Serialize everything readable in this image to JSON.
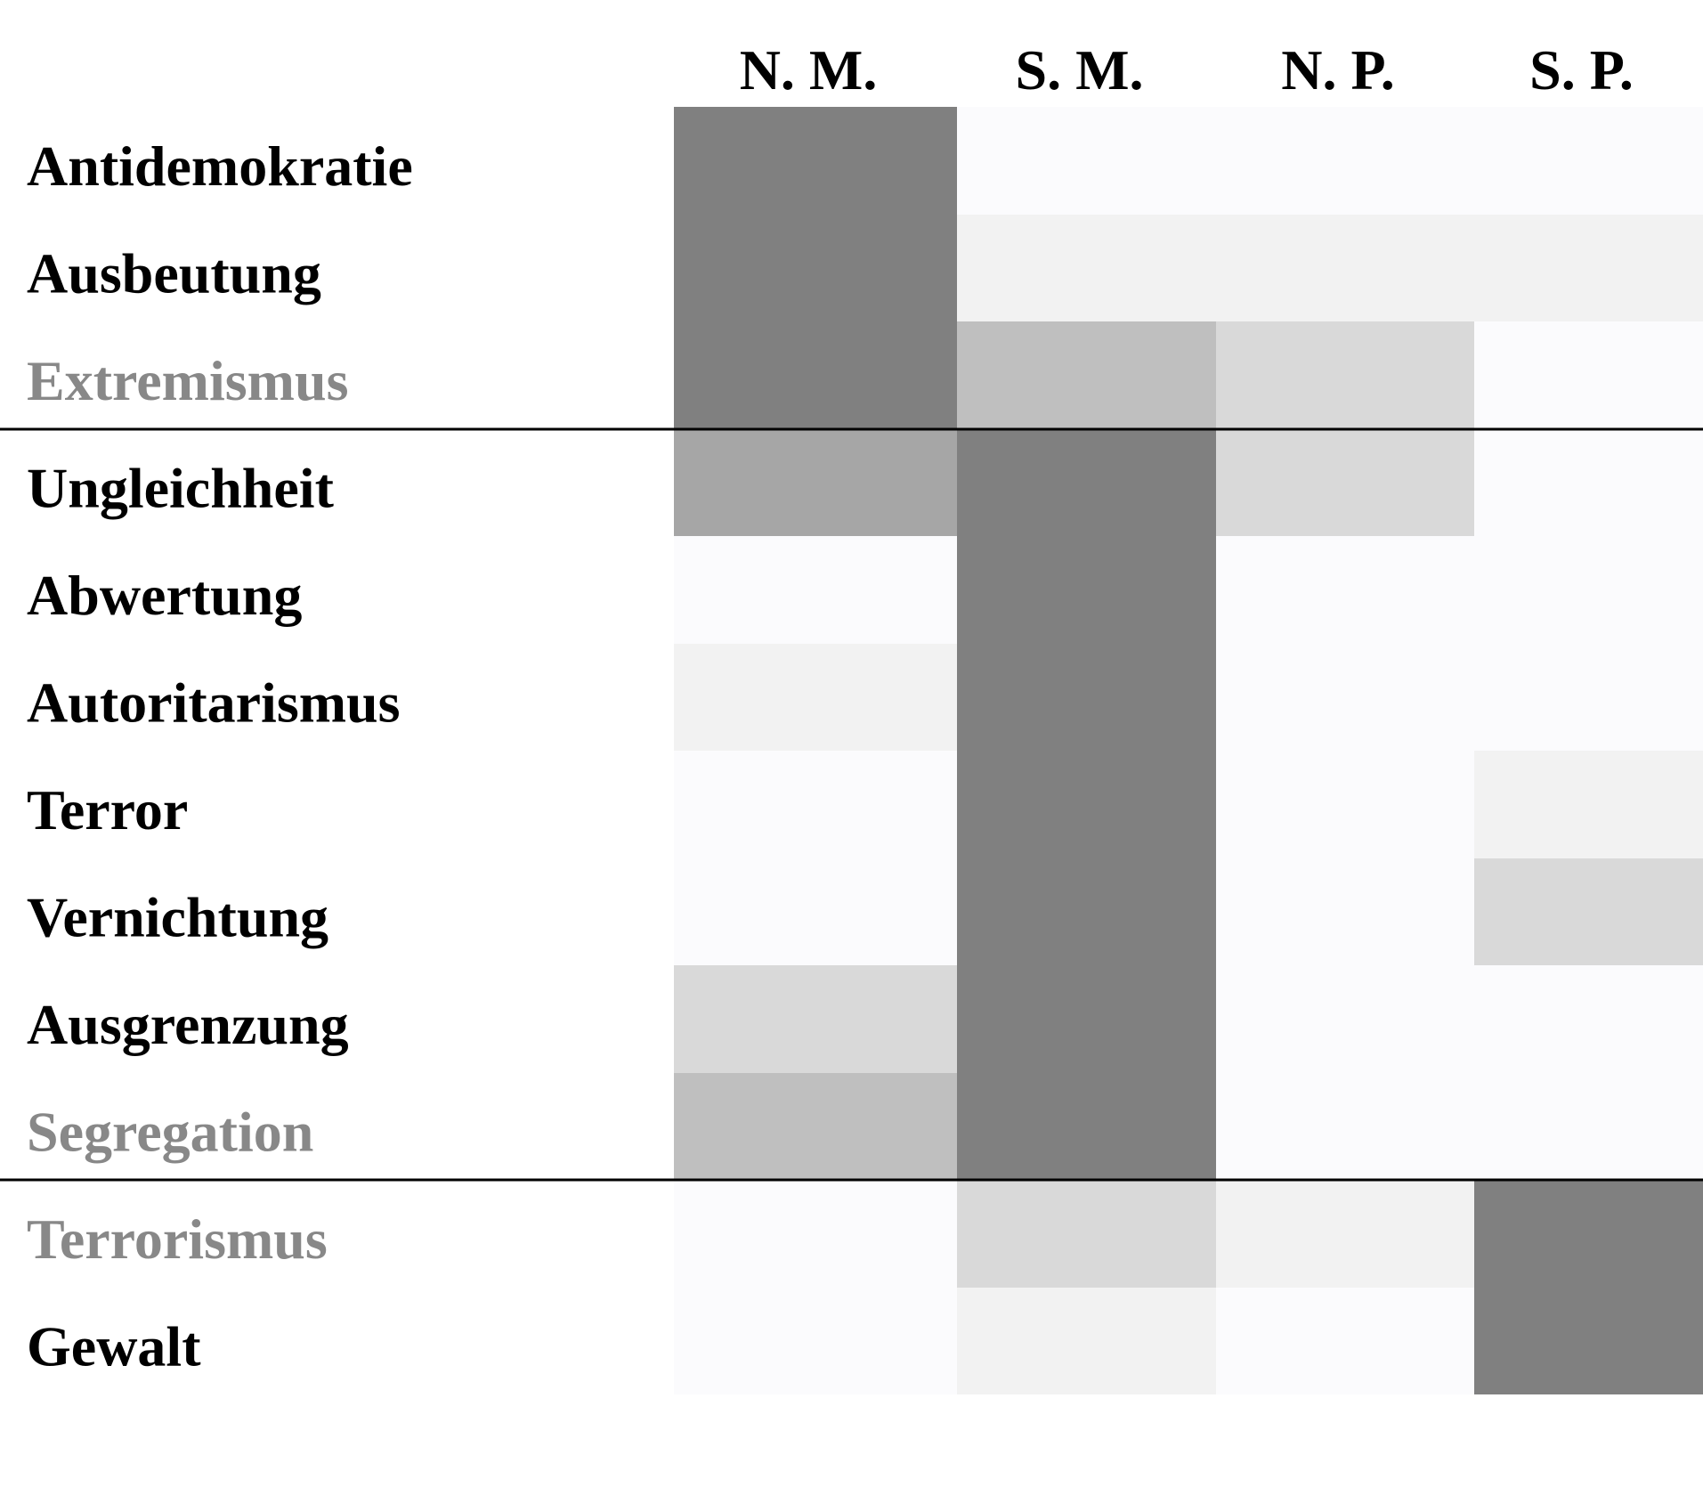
{
  "chart_data": {
    "type": "heatmap",
    "title": "",
    "columns": [
      "N. M.",
      "S. M.",
      "N. P.",
      "S. P."
    ],
    "rows": [
      {
        "label": "Antidemokratie",
        "muted": false,
        "group": 1
      },
      {
        "label": "Ausbeutung",
        "muted": false,
        "group": 1
      },
      {
        "label": "Extremismus",
        "muted": true,
        "group": 1
      },
      {
        "label": "Ungleichheit",
        "muted": false,
        "group": 2
      },
      {
        "label": "Abwertung",
        "muted": false,
        "group": 2
      },
      {
        "label": "Autoritarismus",
        "muted": false,
        "group": 2
      },
      {
        "label": "Terror",
        "muted": false,
        "group": 2
      },
      {
        "label": "Vernichtung",
        "muted": false,
        "group": 2
      },
      {
        "label": "Ausgrenzung",
        "muted": false,
        "group": 2
      },
      {
        "label": "Segregation",
        "muted": true,
        "group": 2
      },
      {
        "label": "Terrorismus",
        "muted": true,
        "group": 3
      },
      {
        "label": "Gewalt",
        "muted": false,
        "group": 3
      }
    ],
    "values": [
      [
        5,
        0,
        0,
        0
      ],
      [
        5,
        1,
        1,
        1
      ],
      [
        5,
        3,
        2,
        0
      ],
      [
        4,
        5,
        2,
        0
      ],
      [
        0,
        5,
        0,
        0
      ],
      [
        1,
        5,
        0,
        0
      ],
      [
        0,
        5,
        0,
        1
      ],
      [
        0,
        5,
        0,
        2
      ],
      [
        2,
        5,
        0,
        0
      ],
      [
        3,
        5,
        0,
        0
      ],
      [
        0,
        2,
        1,
        5
      ],
      [
        0,
        1,
        0,
        5
      ]
    ],
    "value_range": [
      0,
      5
    ],
    "color_scale": [
      "#fbfbfd",
      "#f2f2f2",
      "#d9d9d9",
      "#bfbfbf",
      "#a6a6a6",
      "#808080"
    ],
    "label_color": "#000000",
    "muted_label_color": "#888888",
    "separator_color": "#000000"
  }
}
